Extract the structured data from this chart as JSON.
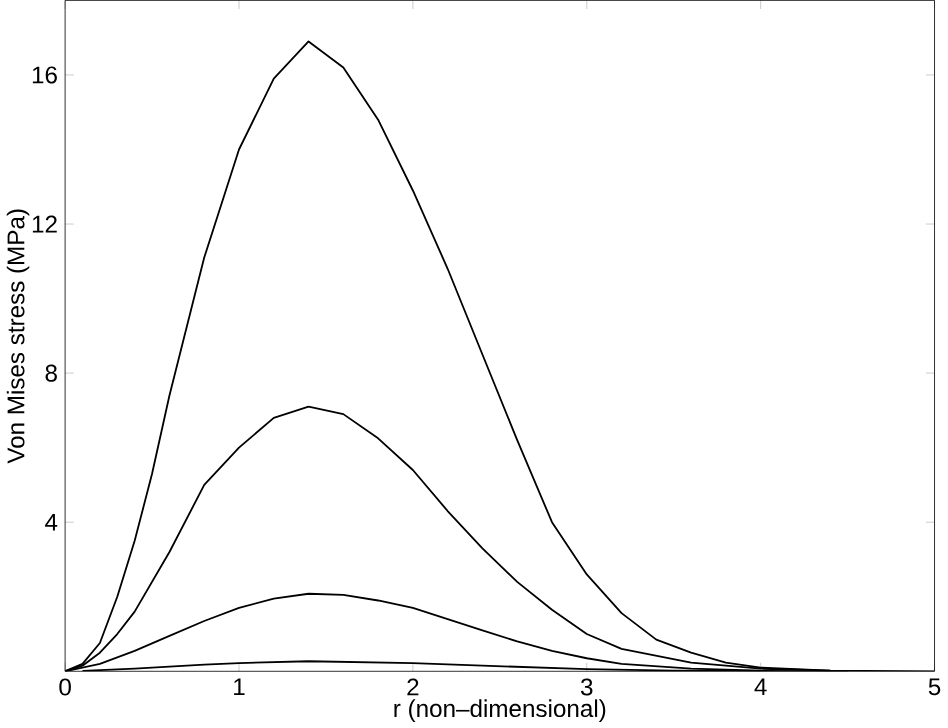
{
  "chart_data": {
    "type": "line",
    "xlabel": "r (non–dimensional)",
    "ylabel": "Von Mises stress (MPa)",
    "xlim": [
      0,
      5
    ],
    "ylim": [
      0,
      18
    ],
    "xticks": [
      0,
      1,
      2,
      3,
      4,
      5
    ],
    "yticks": [
      4,
      8,
      12,
      16
    ],
    "grid": false,
    "marker": "none",
    "line_style": "solid",
    "series": [
      {
        "color": "#000000",
        "x": [
          0,
          0.1,
          0.2,
          0.3,
          0.4,
          0.5,
          0.6,
          0.8,
          1.0,
          1.2,
          1.4,
          1.6,
          1.8,
          2.0,
          2.2,
          2.4,
          2.6,
          2.8,
          3.0,
          3.2,
          3.4,
          3.6,
          3.8,
          4.0,
          4.4,
          5
        ],
        "values": [
          0,
          0.2,
          0.76,
          2.0,
          3.5,
          5.3,
          7.4,
          11.1,
          14.0,
          15.9,
          16.9,
          16.2,
          14.8,
          12.9,
          10.8,
          8.5,
          6.2,
          4.0,
          2.6,
          1.56,
          0.85,
          0.5,
          0.23,
          0.1,
          0.02,
          0
        ]
      },
      {
        "color": "#000000",
        "x": [
          0,
          0.1,
          0.2,
          0.3,
          0.4,
          0.5,
          0.6,
          0.8,
          1.0,
          1.2,
          1.4,
          1.6,
          1.8,
          2.0,
          2.2,
          2.4,
          2.6,
          2.8,
          3.0,
          3.2,
          3.6,
          4.0,
          4.4
        ],
        "values": [
          0,
          0.15,
          0.5,
          1.0,
          1.6,
          2.4,
          3.2,
          5.0,
          6.0,
          6.8,
          7.1,
          6.9,
          6.25,
          5.4,
          4.3,
          3.3,
          2.4,
          1.65,
          1.0,
          0.6,
          0.23,
          0.07,
          0.02
        ]
      },
      {
        "color": "#000000",
        "x": [
          0,
          0.2,
          0.4,
          0.6,
          0.8,
          1.0,
          1.2,
          1.4,
          1.6,
          1.8,
          2.0,
          2.2,
          2.4,
          2.6,
          2.8,
          3.0,
          3.2,
          3.6,
          4.0
        ],
        "values": [
          0,
          0.2,
          0.55,
          0.95,
          1.35,
          1.7,
          1.95,
          2.08,
          2.05,
          1.9,
          1.7,
          1.4,
          1.1,
          0.8,
          0.55,
          0.35,
          0.2,
          0.07,
          0.02
        ]
      },
      {
        "color": "#000000",
        "x": [
          0.1,
          0.4,
          0.8,
          1.0,
          1.4,
          2.0,
          2.4,
          3.0,
          3.5,
          4.5
        ],
        "values": [
          0.01,
          0.07,
          0.18,
          0.22,
          0.27,
          0.22,
          0.15,
          0.06,
          0.02,
          0
        ]
      }
    ]
  }
}
